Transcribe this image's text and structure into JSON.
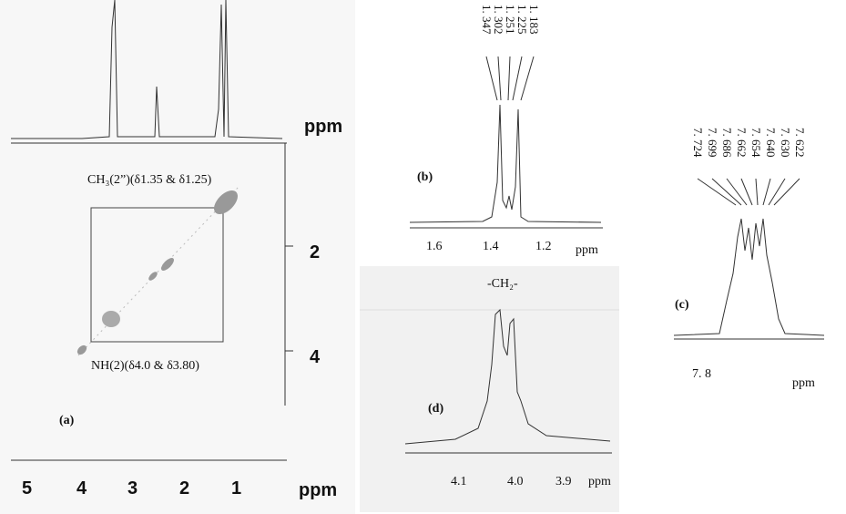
{
  "panels": [
    {
      "label": "(a)",
      "x_ticks": [
        "5",
        "4",
        "3",
        "2",
        "1"
      ],
      "x_unit": "ppm",
      "y_ticks": [
        "2",
        "4"
      ],
      "top_unit": "ppm",
      "annotations": [
        "CH₃(2”)(δ1.35 & δ1.25)",
        "NH(2)(δ4.0 & δ3.80)"
      ]
    },
    {
      "label": "(b)",
      "peaks": [
        "1. 347",
        "1. 302",
        "1. 251",
        "1. 225",
        "1. 183"
      ],
      "x_ticks": [
        "1.6",
        "1.4",
        "1.2"
      ],
      "x_unit": "ppm"
    },
    {
      "label": "(c)",
      "peaks": [
        "7. 724",
        "7. 699",
        "7. 686",
        "7. 662",
        "7. 654",
        "7. 640",
        "7. 630",
        "7. 622"
      ],
      "x_ticks": [
        "7. 8"
      ],
      "x_unit": "ppm"
    },
    {
      "label": "(d)",
      "title": "-CH₂-",
      "x_ticks": [
        "4.1",
        "4.0",
        "3.9"
      ],
      "x_unit": "ppm"
    }
  ]
}
